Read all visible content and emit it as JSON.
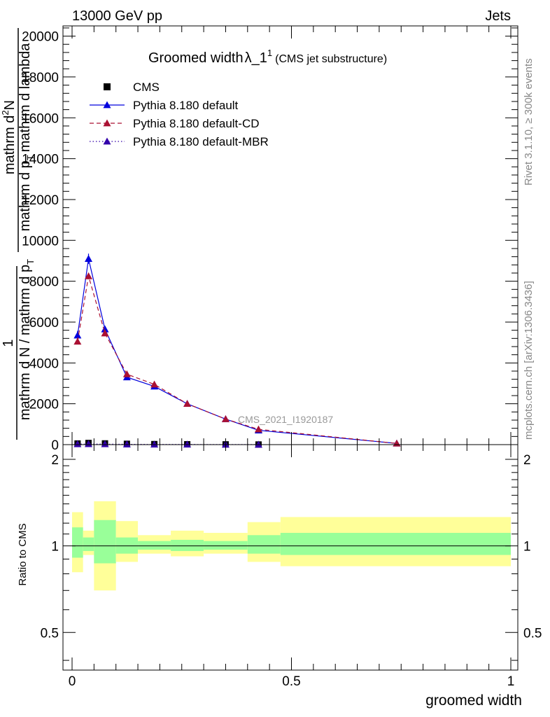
{
  "header": {
    "left": "13000 GeV pp",
    "right": "Jets"
  },
  "side_labels": {
    "rivet": "Rivet 3.1.10, ≥ 300k events",
    "mcplots": "mcplots.cern.ch [arXiv:1306.3436]"
  },
  "watermark": "CMS_2021_I1920187",
  "chart_data": [
    {
      "type": "line",
      "panel": "main",
      "title_main": "Groomed width",
      "title_lambda": "λ_1",
      "title_sup": "1",
      "title_sub": "(CMS jet substructure)",
      "xlabel": "groomed width",
      "ylabel_top": "1",
      "ylabel_num_a": "mathrm d",
      "ylabel_num_sup": "2",
      "ylabel_num_b": "N",
      "ylabel_denom_a": "mathrm d p",
      "ylabel_denom_sub": "T",
      "ylabel_denom_b": "mathrm d lambda",
      "ylabel_bottom": "mathrm d N / mathrm d p",
      "ylabel_bottom_sub": "T",
      "xlim": [
        0,
        1
      ],
      "ylim": [
        0,
        20500
      ],
      "yticks": [
        0,
        2000,
        4000,
        6000,
        8000,
        10000,
        12000,
        14000,
        16000,
        18000,
        20000
      ],
      "ytick_labels": [
        "0",
        "2000",
        "4000",
        "6000",
        "8000",
        "10000",
        "12000",
        "14000",
        "16000",
        "18000",
        "20000"
      ],
      "legend_position": "top-left",
      "series": [
        {
          "name": "CMS",
          "color": "#000000",
          "marker": "square",
          "x": [
            0.0125,
            0.0375,
            0.075,
            0.125,
            0.1875,
            0.2625,
            0.35,
            0.425
          ],
          "y": [
            55,
            80,
            60,
            40,
            25,
            18,
            12,
            6
          ]
        },
        {
          "name": "Pythia 8.180 default",
          "color": "#0000dd",
          "marker": "triangle",
          "style": "solid",
          "x": [
            0.0125,
            0.0375,
            0.075,
            0.125,
            0.1875,
            0.2625,
            0.35,
            0.425,
            0.74
          ],
          "y": [
            5350,
            9100,
            5650,
            3300,
            2850,
            2000,
            1250,
            700,
            60
          ],
          "yerr": [
            220,
            250,
            150,
            100,
            80,
            60,
            50,
            40,
            10
          ]
        },
        {
          "name": "Pythia 8.180 default-CD",
          "color": "#aa1133",
          "marker": "triangle",
          "style": "dashed",
          "x": [
            0.0125,
            0.0375,
            0.075,
            0.125,
            0.1875,
            0.2625,
            0.35,
            0.425,
            0.74
          ],
          "y": [
            5050,
            8250,
            5450,
            3450,
            2950,
            2000,
            1250,
            750,
            60
          ]
        },
        {
          "name": "Pythia 8.180 default-MBR",
          "color": "#3300aa",
          "marker": "triangle",
          "style": "dotted",
          "x": [
            0.0125,
            0.0375,
            0.075,
            0.125,
            0.1875,
            0.2625,
            0.35,
            0.425
          ],
          "y": [
            25,
            30,
            25,
            15,
            10,
            8,
            5,
            3
          ]
        }
      ]
    },
    {
      "type": "area",
      "panel": "ratio",
      "ylabel": "Ratio to CMS",
      "xlabel": "groomed width",
      "xlim": [
        0,
        1
      ],
      "ylim": [
        0.37,
        2.25
      ],
      "yticks": [
        0.5,
        1,
        2
      ],
      "ytick_labels": [
        "0.5",
        "1",
        "2"
      ],
      "xticks": [
        0,
        0.5,
        1
      ],
      "xtick_labels": [
        "0",
        "0.5",
        "1"
      ],
      "reference": 1,
      "bins": [
        {
          "x0": 0.0,
          "x1": 0.025,
          "inner": [
            0.91,
            1.16
          ],
          "outer": [
            0.81,
            1.31
          ]
        },
        {
          "x0": 0.025,
          "x1": 0.05,
          "inner": [
            0.96,
            1.07
          ],
          "outer": [
            0.93,
            1.13
          ]
        },
        {
          "x0": 0.05,
          "x1": 0.1,
          "inner": [
            0.87,
            1.23
          ],
          "outer": [
            0.7,
            1.43
          ]
        },
        {
          "x0": 0.1,
          "x1": 0.15,
          "inner": [
            0.94,
            1.07
          ],
          "outer": [
            0.88,
            1.22
          ]
        },
        {
          "x0": 0.15,
          "x1": 0.225,
          "inner": [
            0.97,
            1.04
          ],
          "outer": [
            0.94,
            1.09
          ]
        },
        {
          "x0": 0.225,
          "x1": 0.3,
          "inner": [
            0.96,
            1.05
          ],
          "outer": [
            0.92,
            1.13
          ]
        },
        {
          "x0": 0.3,
          "x1": 0.4,
          "inner": [
            0.97,
            1.04
          ],
          "outer": [
            0.94,
            1.11
          ]
        },
        {
          "x0": 0.4,
          "x1": 0.475,
          "inner": [
            0.94,
            1.09
          ],
          "outer": [
            0.88,
            1.21
          ]
        },
        {
          "x0": 0.475,
          "x1": 1.0,
          "inner": [
            0.93,
            1.11
          ],
          "outer": [
            0.85,
            1.26
          ]
        }
      ]
    }
  ],
  "colors": {
    "inner_band": "#99ff99",
    "outer_band": "#ffff99",
    "side_text": "#888888",
    "watermark": "#999999"
  }
}
